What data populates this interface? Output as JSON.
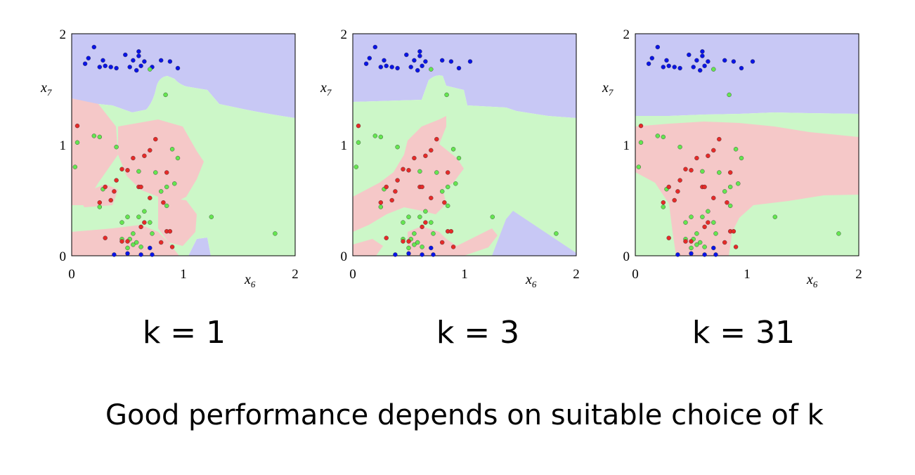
{
  "caption": "Good performance depends on suitable choice of k",
  "colors": {
    "class_blue": "#0a14e6",
    "class_green": "#64e650",
    "class_red": "#e62a28",
    "region_blue": "#c8c8f5",
    "region_green": "#ccf7c8",
    "region_red": "#f5c8c8"
  },
  "panel_titles": [
    "k = 1",
    "k = 3",
    "k = 31"
  ],
  "chart_data": [
    {
      "type": "scatter",
      "title": "k = 1",
      "xlabel": "x6",
      "ylabel": "x7",
      "xlim": [
        0,
        2
      ],
      "ylim": [
        0,
        2
      ],
      "xticks": [
        "0",
        "1",
        "2"
      ],
      "yticks": [
        "0",
        "1",
        "2"
      ],
      "grid": false,
      "decision_regions": [
        "blue",
        "green",
        "red"
      ],
      "series": [
        {
          "color": "blue",
          "points": [
            [
              0.12,
              1.73
            ],
            [
              0.15,
              1.78
            ],
            [
              0.2,
              1.88
            ],
            [
              0.25,
              1.7
            ],
            [
              0.28,
              1.76
            ],
            [
              0.3,
              1.71
            ],
            [
              0.35,
              1.7
            ],
            [
              0.4,
              1.69
            ],
            [
              0.48,
              1.81
            ],
            [
              0.52,
              1.7
            ],
            [
              0.55,
              1.76
            ],
            [
              0.58,
              1.67
            ],
            [
              0.6,
              1.8
            ],
            [
              0.6,
              1.84
            ],
            [
              0.62,
              1.71
            ],
            [
              0.65,
              1.75
            ],
            [
              0.72,
              1.7
            ],
            [
              0.8,
              1.76
            ],
            [
              0.88,
              1.75
            ],
            [
              0.95,
              1.69
            ],
            [
              0.38,
              0.01
            ],
            [
              0.5,
              0.02
            ],
            [
              0.7,
              0.07
            ],
            [
              0.72,
              0.01
            ],
            [
              0.62,
              0.01
            ]
          ]
        },
        {
          "color": "green",
          "points": [
            [
              0.7,
              1.68
            ],
            [
              0.84,
              1.45
            ],
            [
              0.2,
              1.08
            ],
            [
              0.25,
              1.07
            ],
            [
              0.05,
              1.02
            ],
            [
              0.03,
              0.8
            ],
            [
              0.4,
              0.98
            ],
            [
              0.6,
              0.76
            ],
            [
              0.75,
              0.75
            ],
            [
              0.9,
              0.96
            ],
            [
              0.95,
              0.88
            ],
            [
              0.85,
              0.62
            ],
            [
              0.8,
              0.58
            ],
            [
              0.25,
              0.44
            ],
            [
              0.28,
              0.6
            ],
            [
              0.45,
              0.3
            ],
            [
              0.5,
              0.35
            ],
            [
              0.55,
              0.2
            ],
            [
              0.6,
              0.35
            ],
            [
              0.65,
              0.4
            ],
            [
              0.7,
              0.3
            ],
            [
              0.55,
              0.1
            ],
            [
              0.52,
              0.15
            ],
            [
              0.58,
              0.12
            ],
            [
              0.62,
              0.08
            ],
            [
              0.85,
              0.45
            ],
            [
              0.92,
              0.65
            ],
            [
              1.25,
              0.35
            ],
            [
              1.82,
              0.2
            ],
            [
              0.45,
              0.15
            ],
            [
              0.5,
              0.07
            ],
            [
              0.72,
              0.2
            ]
          ]
        },
        {
          "color": "red",
          "points": [
            [
              0.05,
              1.17
            ],
            [
              0.4,
              0.68
            ],
            [
              0.45,
              0.78
            ],
            [
              0.5,
              0.77
            ],
            [
              0.55,
              0.88
            ],
            [
              0.6,
              0.62
            ],
            [
              0.62,
              0.62
            ],
            [
              0.65,
              0.9
            ],
            [
              0.7,
              0.95
            ],
            [
              0.75,
              1.05
            ],
            [
              0.85,
              0.75
            ],
            [
              0.3,
              0.62
            ],
            [
              0.35,
              0.5
            ],
            [
              0.38,
              0.58
            ],
            [
              0.25,
              0.48
            ],
            [
              0.3,
              0.16
            ],
            [
              0.45,
              0.13
            ],
            [
              0.5,
              0.13
            ],
            [
              0.62,
              0.26
            ],
            [
              0.7,
              0.52
            ],
            [
              0.82,
              0.48
            ],
            [
              0.85,
              0.22
            ],
            [
              0.88,
              0.22
            ],
            [
              0.9,
              0.08
            ],
            [
              0.8,
              0.12
            ],
            [
              0.65,
              0.3
            ]
          ]
        }
      ]
    },
    {
      "type": "scatter",
      "title": "k = 3",
      "xlabel": "x6",
      "ylabel": "x7",
      "xlim": [
        0,
        2
      ],
      "ylim": [
        0,
        2
      ],
      "xticks": [
        "0",
        "1",
        "2"
      ],
      "yticks": [
        "0",
        "1",
        "2"
      ],
      "grid": false,
      "decision_regions": [
        "blue",
        "green",
        "red"
      ],
      "series": [
        {
          "color": "blue",
          "points": [
            [
              0.12,
              1.73
            ],
            [
              0.15,
              1.78
            ],
            [
              0.2,
              1.88
            ],
            [
              0.25,
              1.7
            ],
            [
              0.28,
              1.76
            ],
            [
              0.3,
              1.71
            ],
            [
              0.35,
              1.7
            ],
            [
              0.4,
              1.69
            ],
            [
              0.48,
              1.81
            ],
            [
              0.52,
              1.7
            ],
            [
              0.55,
              1.76
            ],
            [
              0.58,
              1.67
            ],
            [
              0.6,
              1.8
            ],
            [
              0.6,
              1.84
            ],
            [
              0.62,
              1.71
            ],
            [
              0.65,
              1.75
            ],
            [
              0.8,
              1.76
            ],
            [
              0.88,
              1.75
            ],
            [
              0.95,
              1.69
            ],
            [
              1.05,
              1.75
            ],
            [
              0.38,
              0.01
            ],
            [
              0.5,
              0.02
            ],
            [
              0.7,
              0.07
            ],
            [
              0.72,
              0.01
            ],
            [
              0.62,
              0.01
            ]
          ]
        },
        {
          "color": "green",
          "points": [
            [
              0.7,
              1.68
            ],
            [
              0.84,
              1.45
            ],
            [
              0.2,
              1.08
            ],
            [
              0.25,
              1.07
            ],
            [
              0.05,
              1.02
            ],
            [
              0.03,
              0.8
            ],
            [
              0.4,
              0.98
            ],
            [
              0.6,
              0.76
            ],
            [
              0.75,
              0.75
            ],
            [
              0.9,
              0.96
            ],
            [
              0.95,
              0.88
            ],
            [
              0.85,
              0.62
            ],
            [
              0.8,
              0.58
            ],
            [
              0.25,
              0.44
            ],
            [
              0.28,
              0.6
            ],
            [
              0.45,
              0.3
            ],
            [
              0.5,
              0.35
            ],
            [
              0.55,
              0.2
            ],
            [
              0.6,
              0.35
            ],
            [
              0.65,
              0.4
            ],
            [
              0.7,
              0.3
            ],
            [
              0.55,
              0.1
            ],
            [
              0.52,
              0.15
            ],
            [
              0.58,
              0.12
            ],
            [
              0.62,
              0.08
            ],
            [
              0.85,
              0.45
            ],
            [
              0.92,
              0.65
            ],
            [
              1.25,
              0.35
            ],
            [
              1.82,
              0.2
            ],
            [
              0.45,
              0.15
            ],
            [
              0.5,
              0.07
            ],
            [
              0.72,
              0.2
            ]
          ]
        },
        {
          "color": "red",
          "points": [
            [
              0.05,
              1.17
            ],
            [
              0.4,
              0.68
            ],
            [
              0.45,
              0.78
            ],
            [
              0.5,
              0.77
            ],
            [
              0.55,
              0.88
            ],
            [
              0.6,
              0.62
            ],
            [
              0.62,
              0.62
            ],
            [
              0.65,
              0.9
            ],
            [
              0.7,
              0.95
            ],
            [
              0.75,
              1.05
            ],
            [
              0.85,
              0.75
            ],
            [
              0.3,
              0.62
            ],
            [
              0.35,
              0.5
            ],
            [
              0.38,
              0.58
            ],
            [
              0.25,
              0.48
            ],
            [
              0.3,
              0.16
            ],
            [
              0.45,
              0.13
            ],
            [
              0.5,
              0.13
            ],
            [
              0.62,
              0.26
            ],
            [
              0.7,
              0.52
            ],
            [
              0.82,
              0.48
            ],
            [
              0.85,
              0.22
            ],
            [
              0.88,
              0.22
            ],
            [
              0.9,
              0.08
            ],
            [
              0.8,
              0.12
            ],
            [
              0.65,
              0.3
            ]
          ]
        }
      ]
    },
    {
      "type": "scatter",
      "title": "k = 31",
      "xlabel": "x6",
      "ylabel": "x7",
      "xlim": [
        0,
        2
      ],
      "ylim": [
        0,
        2
      ],
      "xticks": [
        "0",
        "1",
        "2"
      ],
      "yticks": [
        "0",
        "1",
        "2"
      ],
      "grid": false,
      "decision_regions": [
        "blue",
        "green",
        "red"
      ],
      "series": [
        {
          "color": "blue",
          "points": [
            [
              0.12,
              1.73
            ],
            [
              0.15,
              1.78
            ],
            [
              0.2,
              1.88
            ],
            [
              0.25,
              1.7
            ],
            [
              0.28,
              1.76
            ],
            [
              0.3,
              1.71
            ],
            [
              0.35,
              1.7
            ],
            [
              0.4,
              1.69
            ],
            [
              0.48,
              1.81
            ],
            [
              0.52,
              1.7
            ],
            [
              0.55,
              1.76
            ],
            [
              0.58,
              1.67
            ],
            [
              0.6,
              1.8
            ],
            [
              0.6,
              1.84
            ],
            [
              0.62,
              1.71
            ],
            [
              0.65,
              1.75
            ],
            [
              0.8,
              1.76
            ],
            [
              0.88,
              1.75
            ],
            [
              0.95,
              1.69
            ],
            [
              1.05,
              1.75
            ],
            [
              0.38,
              0.01
            ],
            [
              0.5,
              0.02
            ],
            [
              0.7,
              0.07
            ],
            [
              0.72,
              0.01
            ],
            [
              0.62,
              0.01
            ]
          ]
        },
        {
          "color": "green",
          "points": [
            [
              0.7,
              1.68
            ],
            [
              0.84,
              1.45
            ],
            [
              0.2,
              1.08
            ],
            [
              0.25,
              1.07
            ],
            [
              0.05,
              1.02
            ],
            [
              0.03,
              0.8
            ],
            [
              0.4,
              0.98
            ],
            [
              0.6,
              0.76
            ],
            [
              0.75,
              0.75
            ],
            [
              0.9,
              0.96
            ],
            [
              0.95,
              0.88
            ],
            [
              0.85,
              0.62
            ],
            [
              0.8,
              0.58
            ],
            [
              0.25,
              0.44
            ],
            [
              0.28,
              0.6
            ],
            [
              0.45,
              0.3
            ],
            [
              0.5,
              0.35
            ],
            [
              0.55,
              0.2
            ],
            [
              0.6,
              0.35
            ],
            [
              0.65,
              0.4
            ],
            [
              0.7,
              0.3
            ],
            [
              0.55,
              0.1
            ],
            [
              0.52,
              0.15
            ],
            [
              0.58,
              0.12
            ],
            [
              0.62,
              0.08
            ],
            [
              0.85,
              0.45
            ],
            [
              0.92,
              0.65
            ],
            [
              1.25,
              0.35
            ],
            [
              1.82,
              0.2
            ],
            [
              0.45,
              0.15
            ],
            [
              0.5,
              0.07
            ],
            [
              0.72,
              0.2
            ]
          ]
        },
        {
          "color": "red",
          "points": [
            [
              0.05,
              1.17
            ],
            [
              0.4,
              0.68
            ],
            [
              0.45,
              0.78
            ],
            [
              0.5,
              0.77
            ],
            [
              0.55,
              0.88
            ],
            [
              0.6,
              0.62
            ],
            [
              0.62,
              0.62
            ],
            [
              0.65,
              0.9
            ],
            [
              0.7,
              0.95
            ],
            [
              0.75,
              1.05
            ],
            [
              0.85,
              0.75
            ],
            [
              0.3,
              0.62
            ],
            [
              0.35,
              0.5
            ],
            [
              0.38,
              0.58
            ],
            [
              0.25,
              0.48
            ],
            [
              0.3,
              0.16
            ],
            [
              0.45,
              0.13
            ],
            [
              0.5,
              0.13
            ],
            [
              0.62,
              0.26
            ],
            [
              0.7,
              0.52
            ],
            [
              0.82,
              0.48
            ],
            [
              0.85,
              0.22
            ],
            [
              0.88,
              0.22
            ],
            [
              0.9,
              0.08
            ],
            [
              0.8,
              0.12
            ],
            [
              0.65,
              0.3
            ]
          ]
        }
      ]
    }
  ]
}
